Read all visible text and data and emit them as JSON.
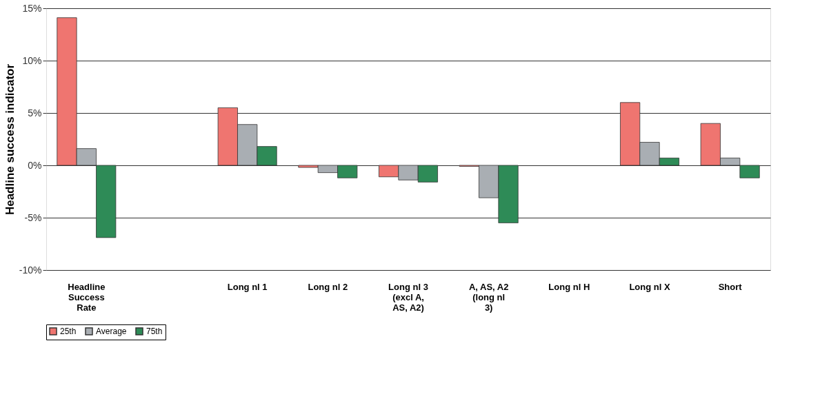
{
  "chart_data": {
    "type": "bar",
    "ylabel": "Headline success indicator",
    "categories": [
      "Headline Success Rate",
      null,
      "Long nl 1",
      "Long nl 2",
      "Long nl 3 (excl A, AS, A2)",
      "A, AS, A2 (long nl 3)",
      "Long nl H",
      "Long nl X",
      "Short"
    ],
    "series": [
      {
        "name": "25th",
        "color": "#ef7570",
        "values": [
          14.1,
          null,
          5.5,
          -0.2,
          -1.1,
          -0.1,
          null,
          6.0,
          4.0
        ]
      },
      {
        "name": "Average",
        "color": "#a9aeb3",
        "values": [
          1.6,
          null,
          3.9,
          -0.7,
          -1.4,
          -3.1,
          null,
          2.2,
          0.7
        ]
      },
      {
        "name": "75th",
        "color": "#2e8b57",
        "values": [
          -6.9,
          null,
          1.8,
          -1.2,
          -1.6,
          -5.5,
          null,
          0.7,
          -1.2
        ]
      }
    ],
    "ylim": [
      -10,
      15
    ],
    "yticks": [
      {
        "value": -10,
        "label": "-10%"
      },
      {
        "value": -5,
        "label": "-5%"
      },
      {
        "value": 0,
        "label": "0%"
      },
      {
        "value": 5,
        "label": "5%"
      },
      {
        "value": 10,
        "label": "10%"
      },
      {
        "value": 15,
        "label": "15%"
      }
    ],
    "grid": "y",
    "legend": "bottom"
  }
}
